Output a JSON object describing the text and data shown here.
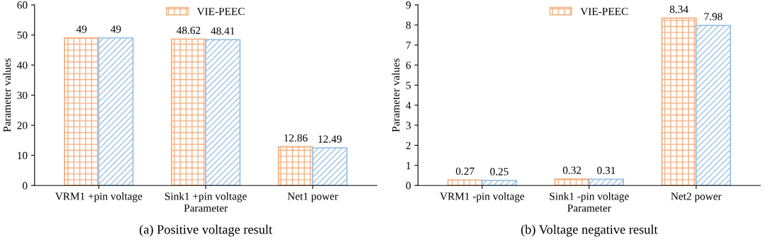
{
  "chart_data": [
    {
      "type": "bar",
      "title": "(a) Positive voltage result",
      "xlabel": "Parameter",
      "ylabel": "Parameter values",
      "categories": [
        "VRM1 +pin voltage",
        "Sink1 +pin voltage",
        "Net1 power"
      ],
      "series": [
        {
          "name": "VIE-PEEC",
          "color": "#f4b183",
          "values": [
            49,
            48.62,
            12.86
          ]
        },
        {
          "color": "#9dc3e6",
          "values": [
            49,
            48.41,
            12.49
          ]
        }
      ],
      "ylim": [
        0,
        60
      ],
      "yticks": [
        0,
        10,
        20,
        30,
        40,
        50,
        60
      ],
      "data_labels": true,
      "legend": "top",
      "grid": false
    },
    {
      "type": "bar",
      "title": "(b) Voltage negative result",
      "xlabel": "Parameter",
      "ylabel": "Parameter values",
      "categories": [
        "VRM1 -pin voltage",
        "Sink1 -pin voltage",
        "Net2 power"
      ],
      "series": [
        {
          "name": "VIE-PEEC",
          "color": "#f4b183",
          "values": [
            0.27,
            0.32,
            8.34
          ]
        },
        {
          "color": "#9dc3e6",
          "values": [
            0.25,
            0.31,
            7.98
          ]
        }
      ],
      "ylim": [
        0,
        9
      ],
      "yticks": [
        0,
        1,
        2,
        3,
        4,
        5,
        6,
        7,
        8,
        9
      ],
      "data_labels": true,
      "legend": "top",
      "grid": false
    }
  ]
}
